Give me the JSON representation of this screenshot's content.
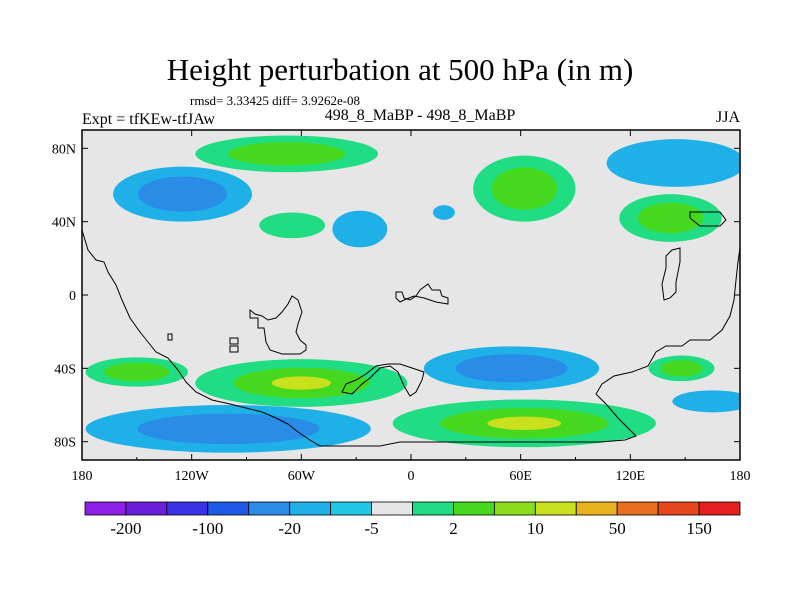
{
  "title": "Height perturbation at 500 hPa (in m)",
  "stats": "rmsd= 3.33425 diff= 3.9262e-08",
  "left_label": "Expt = tfKEw-tfJAw",
  "center_label": "498_8_MaBP - 498_8_MaBP",
  "right_label": "JJA",
  "colors": {
    "background": "#e6e6e6",
    "map_outline": "#000000",
    "palette": [
      "#8c20e6",
      "#6a20d8",
      "#3a32e6",
      "#1e5ae6",
      "#2a8ce6",
      "#1eb0e6",
      "#20c8e6",
      "#e6e6e6",
      "#20dc82",
      "#46d81e",
      "#8cdc1e",
      "#c8e01e",
      "#e6b01e",
      "#e66e1e",
      "#e6461e",
      "#e61e1e"
    ]
  },
  "map": {
    "lon_ticks": [
      "180",
      "120W",
      "60W",
      "0",
      "60E",
      "120E",
      "180"
    ],
    "lat_ticks": [
      "80N",
      "40N",
      "0",
      "40S",
      "80S"
    ]
  },
  "colorbar": {
    "labels": [
      "-200",
      "-100",
      "-20",
      "-5",
      "2",
      "10",
      "50",
      "150"
    ]
  },
  "anomalies": [
    {
      "name": "arctic-atlantic-positive",
      "lon": -68,
      "lat": 77,
      "rlon": 50,
      "rlat": 10,
      "levels": [
        2,
        10
      ]
    },
    {
      "name": "north-pacific-negative",
      "lon": -125,
      "lat": 55,
      "rlon": 38,
      "rlat": 15,
      "levels": [
        -5,
        -20
      ]
    },
    {
      "name": "eastern-europe-positive",
      "lon": 62,
      "lat": 58,
      "rlon": 28,
      "rlat": 18,
      "levels": [
        2,
        10
      ]
    },
    {
      "name": "siberia-negative",
      "lon": 145,
      "lat": 72,
      "rlon": 38,
      "rlat": 13,
      "levels": [
        -5
      ]
    },
    {
      "name": "east-asia-positive",
      "lon": 142,
      "lat": 42,
      "rlon": 28,
      "rlat": 13,
      "levels": [
        2,
        10
      ]
    },
    {
      "name": "north-atlantic-positive",
      "lon": -65,
      "lat": 38,
      "rlon": 18,
      "rlat": 7,
      "levels": [
        2
      ]
    },
    {
      "name": "atlantic-negative",
      "lon": -28,
      "lat": 36,
      "rlon": 15,
      "rlat": 10,
      "levels": [
        -5
      ]
    },
    {
      "name": "mid-atlantic-negative",
      "lon": 18,
      "lat": 45,
      "rlon": 6,
      "rlat": 4,
      "levels": [
        -5
      ]
    },
    {
      "name": "south-pacific-positive",
      "lon": -60,
      "lat": -48,
      "rlon": 58,
      "rlat": 13,
      "levels": [
        2,
        10,
        50
      ]
    },
    {
      "name": "southeast-pacific-positive",
      "lon": -150,
      "lat": -42,
      "rlon": 28,
      "rlat": 8,
      "levels": [
        2,
        10
      ]
    },
    {
      "name": "indian-ocean-negative",
      "lon": 55,
      "lat": -40,
      "rlon": 48,
      "rlat": 12,
      "levels": [
        -5,
        -20
      ]
    },
    {
      "name": "australia-positive",
      "lon": 148,
      "lat": -40,
      "rlon": 18,
      "rlat": 7,
      "levels": [
        2,
        10
      ]
    },
    {
      "name": "south-pacific-east-negative",
      "lon": 165,
      "lat": -58,
      "rlon": 22,
      "rlat": 6,
      "levels": [
        -5
      ]
    },
    {
      "name": "antarctic-west-negative",
      "lon": -100,
      "lat": -73,
      "rlon": 78,
      "rlat": 13,
      "levels": [
        -5,
        -20
      ]
    },
    {
      "name": "antarctic-east-positive",
      "lon": 62,
      "lat": -70,
      "rlon": 72,
      "rlat": 13,
      "levels": [
        2,
        10,
        50
      ]
    }
  ]
}
